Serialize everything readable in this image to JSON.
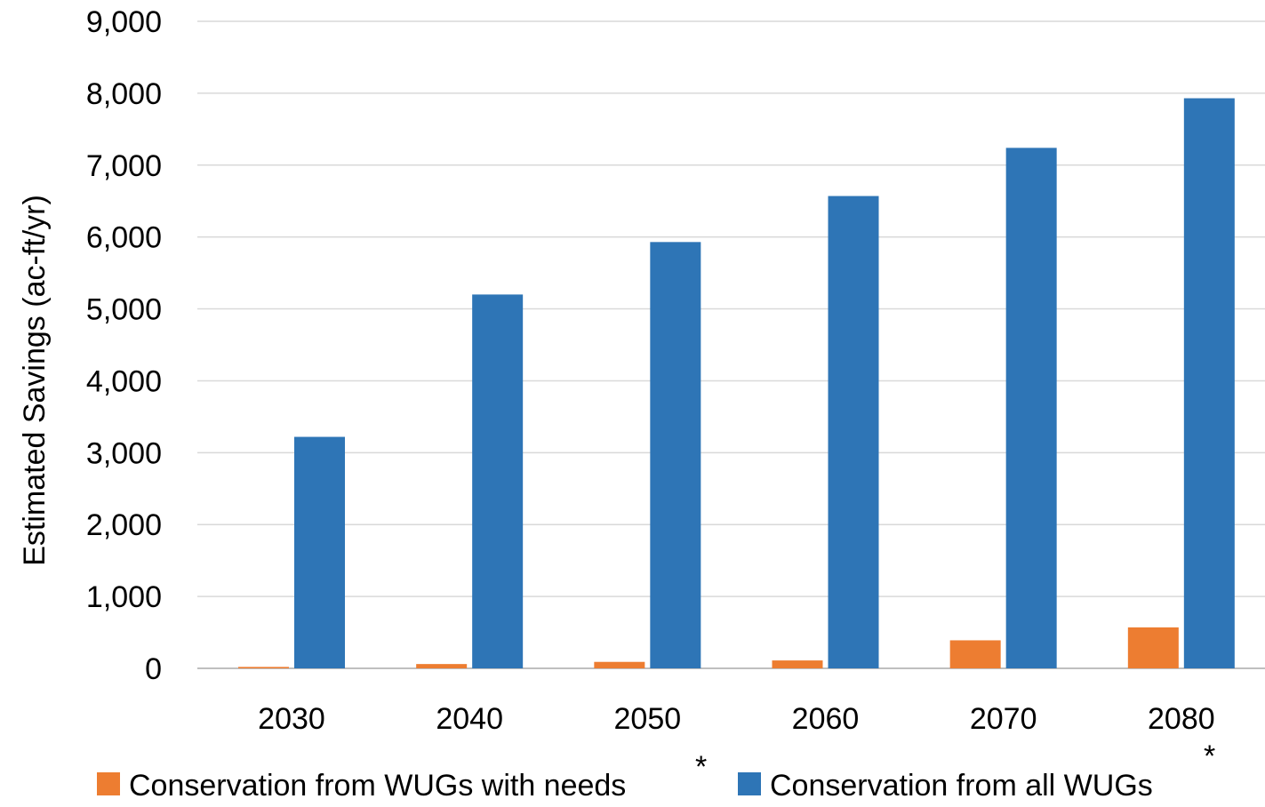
{
  "chart_data": {
    "type": "bar",
    "categories": [
      "2030",
      "2040",
      "2050",
      "2060",
      "2070",
      "2080"
    ],
    "series": [
      {
        "name": "Conservation from WUGs with needs",
        "values": [
          20,
          60,
          90,
          110,
          390,
          570
        ],
        "color": "#ED7D31"
      },
      {
        "name": "Conservation from all WUGs",
        "values": [
          3220,
          5200,
          5930,
          6570,
          7240,
          7930
        ],
        "color": "#2E75B6"
      }
    ],
    "xlabel": "",
    "ylabel": "Estimated Savings (ac-ft/yr)",
    "ylim": [
      0,
      9000
    ],
    "yticks": [
      0,
      1000,
      2000,
      3000,
      4000,
      5000,
      6000,
      7000,
      8000,
      9000
    ],
    "ytick_labels": [
      "0",
      "1,000",
      "2,000",
      "3,000",
      "4,000",
      "5,000",
      "6,000",
      "7,000",
      "8,000",
      "9,000"
    ],
    "grid": true,
    "gridline_color": "#D9D9D9",
    "legend": {
      "placement": "bottom",
      "entries": [
        {
          "label": "Conservation from WUGs with needs",
          "marker": "*"
        },
        {
          "label": "Conservation from all WUGs",
          "marker": "*"
        }
      ]
    }
  }
}
